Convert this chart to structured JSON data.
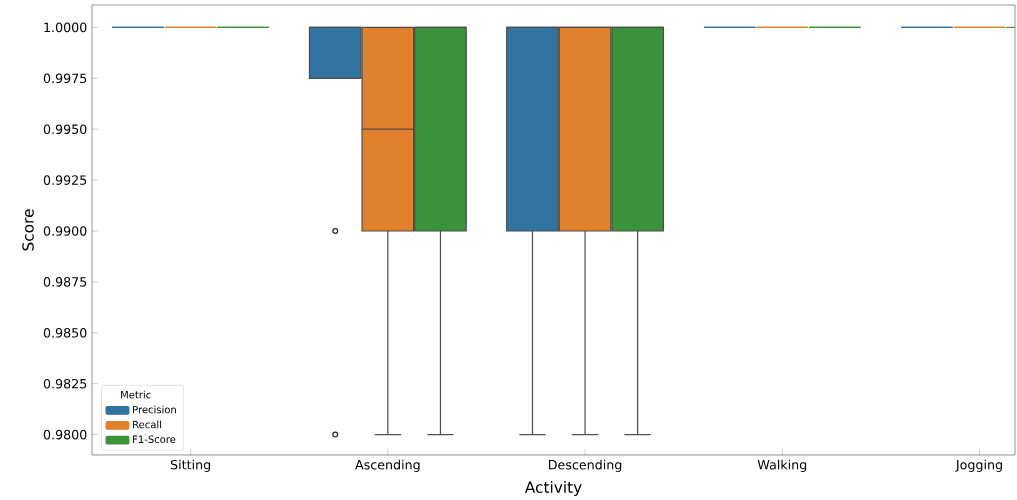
{
  "chart_data": {
    "type": "box",
    "xlabel": "Activity",
    "ylabel": "Score",
    "legend_title": "Metric",
    "legend": "bottom left",
    "categories": [
      "Sitting",
      "Ascending",
      "Descending",
      "Walking",
      "Jogging"
    ],
    "ylim": [
      0.979,
      1.0011
    ],
    "yticks": [
      {
        "value": 0.98,
        "label": "0.9800"
      },
      {
        "value": 0.9825,
        "label": "0.9825"
      },
      {
        "value": 0.985,
        "label": "0.9850"
      },
      {
        "value": 0.9875,
        "label": "0.9875"
      },
      {
        "value": 0.99,
        "label": "0.9900"
      },
      {
        "value": 0.9925,
        "label": "0.9925"
      },
      {
        "value": 0.995,
        "label": "0.9950"
      },
      {
        "value": 0.9975,
        "label": "0.9975"
      },
      {
        "value": 1.0,
        "label": "1.0000"
      }
    ],
    "series": [
      {
        "name": "Precision",
        "color": "#3274a1",
        "boxes": [
          {
            "low": 1.0,
            "q1": 1.0,
            "median": 1.0,
            "q3": 1.0,
            "high": 1.0
          },
          {
            "low": 0.9975,
            "q1": 0.9975,
            "median": 1.0,
            "q3": 1.0,
            "high": 1.0,
            "outliers": [
              0.99,
              0.98
            ]
          },
          {
            "low": 0.98,
            "q1": 0.99,
            "median": 1.0,
            "q3": 1.0,
            "high": 1.0
          },
          {
            "low": 1.0,
            "q1": 1.0,
            "median": 1.0,
            "q3": 1.0,
            "high": 1.0
          },
          {
            "low": 1.0,
            "q1": 1.0,
            "median": 1.0,
            "q3": 1.0,
            "high": 1.0
          }
        ]
      },
      {
        "name": "Recall",
        "color": "#e1812c",
        "boxes": [
          {
            "low": 1.0,
            "q1": 1.0,
            "median": 1.0,
            "q3": 1.0,
            "high": 1.0
          },
          {
            "low": 0.98,
            "q1": 0.99,
            "median": 0.995,
            "q3": 1.0,
            "high": 1.0
          },
          {
            "low": 0.98,
            "q1": 0.99,
            "median": 1.0,
            "q3": 1.0,
            "high": 1.0
          },
          {
            "low": 1.0,
            "q1": 1.0,
            "median": 1.0,
            "q3": 1.0,
            "high": 1.0
          },
          {
            "low": 1.0,
            "q1": 1.0,
            "median": 1.0,
            "q3": 1.0,
            "high": 1.0
          }
        ]
      },
      {
        "name": "F1-Score",
        "color": "#3a923a",
        "boxes": [
          {
            "low": 1.0,
            "q1": 1.0,
            "median": 1.0,
            "q3": 1.0,
            "high": 1.0
          },
          {
            "low": 0.98,
            "q1": 0.99,
            "median": 1.0,
            "q3": 1.0,
            "high": 1.0
          },
          {
            "low": 0.98,
            "q1": 0.99,
            "median": 1.0,
            "q3": 1.0,
            "high": 1.0
          },
          {
            "low": 1.0,
            "q1": 1.0,
            "median": 1.0,
            "q3": 1.0,
            "high": 1.0
          },
          {
            "low": 1.0,
            "q1": 1.0,
            "median": 1.0,
            "q3": 1.0,
            "high": 1.0
          }
        ]
      }
    ]
  }
}
